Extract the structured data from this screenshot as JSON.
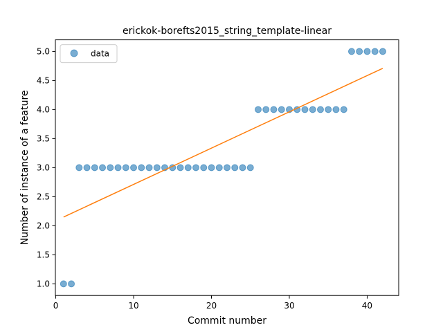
{
  "chart_data": {
    "type": "scatter",
    "title": "erickok-borefts2015_string_template-linear",
    "xlabel": "Commit number",
    "ylabel": "Number of instance of a feature",
    "xlim": [
      -0.05,
      44.05
    ],
    "ylim": [
      0.8,
      5.2
    ],
    "xticks": [
      0,
      10,
      20,
      30,
      40
    ],
    "yticks": [
      1.0,
      1.5,
      2.0,
      2.5,
      3.0,
      3.5,
      4.0,
      4.5,
      5.0
    ],
    "xtick_labels": [
      "0",
      "10",
      "20",
      "30",
      "40"
    ],
    "ytick_labels": [
      "1.0",
      "1.5",
      "2.0",
      "2.5",
      "3.0",
      "3.5",
      "4.0",
      "4.5",
      "5.0"
    ],
    "grid": false,
    "legend_position": "top-left",
    "series": [
      {
        "name": "data",
        "kind": "scatter",
        "color": "#1f77b4",
        "x": [
          1,
          2,
          3,
          4,
          5,
          6,
          7,
          8,
          9,
          10,
          11,
          12,
          13,
          14,
          15,
          16,
          17,
          18,
          19,
          20,
          21,
          22,
          23,
          24,
          25,
          26,
          27,
          28,
          29,
          30,
          31,
          32,
          33,
          34,
          35,
          36,
          37,
          38,
          39,
          40,
          41,
          42
        ],
        "y": [
          1,
          1,
          3,
          3,
          3,
          3,
          3,
          3,
          3,
          3,
          3,
          3,
          3,
          3,
          3,
          3,
          3,
          3,
          3,
          3,
          3,
          3,
          3,
          3,
          3,
          4,
          4,
          4,
          4,
          4,
          4,
          4,
          4,
          4,
          4,
          4,
          4,
          5,
          5,
          5,
          5,
          5
        ]
      },
      {
        "kind": "line",
        "color": "#ff7f0e",
        "x": [
          1,
          42
        ],
        "y": [
          2.15,
          4.71
        ]
      }
    ]
  }
}
